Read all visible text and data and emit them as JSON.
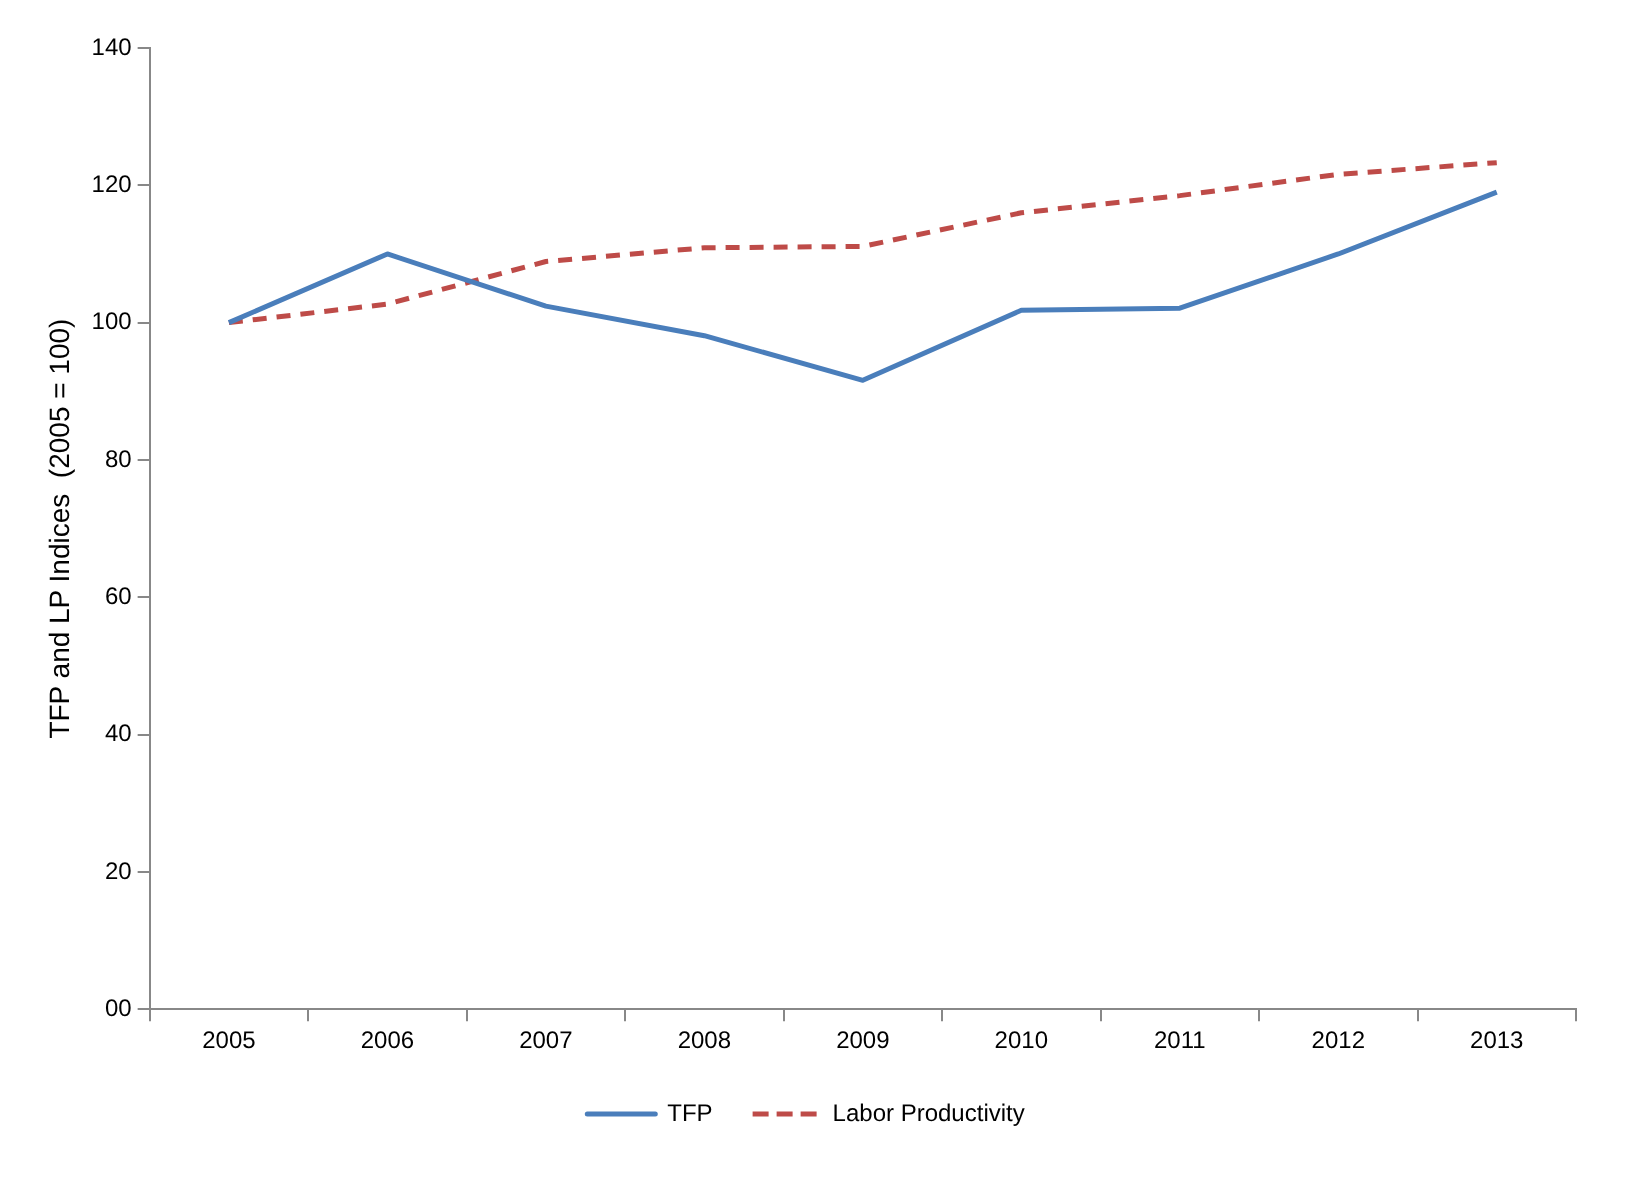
{
  "chart_data": {
    "type": "line",
    "ylabel": "TFP and LP Indices  (2005 = 100)",
    "categories": [
      "2005",
      "2006",
      "2007",
      "2008",
      "2009",
      "2010",
      "2011",
      "2012",
      "2013"
    ],
    "ylim": [
      0,
      140
    ],
    "yticks": [
      {
        "value": 0,
        "label": "00"
      },
      20,
      40,
      60,
      80,
      100,
      120,
      140
    ],
    "grid": false,
    "legend": "bottom",
    "marker": "none",
    "series": [
      {
        "name": "TFP",
        "color": "#4a7ebb",
        "line_style": "solid",
        "values": [
          100,
          110,
          102.4,
          98.1,
          91.6,
          101.8,
          102.1,
          110,
          119
        ]
      },
      {
        "name": "Labor Productivity",
        "color": "#be4b48",
        "line_style": "dashed",
        "values": [
          100,
          102.7,
          108.9,
          110.9,
          111.1,
          116,
          118.5,
          121.6,
          123.3
        ]
      }
    ]
  }
}
